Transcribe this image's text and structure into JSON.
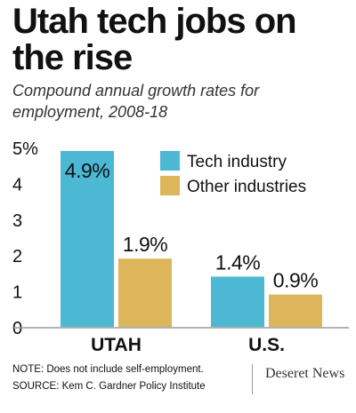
{
  "title": "Utah tech jobs on the rise",
  "subtitle": "Compound annual growth rates for employment, 2008-18",
  "notes": {
    "note": "NOTE: Does not include self-employment.",
    "source": "SOURCE: Kem C. Gardner Policy Institute"
  },
  "brand": "Deseret News",
  "colors": {
    "tech": "#4cb8d4",
    "other": "#ddb55a",
    "axis": "#999999"
  },
  "chart_data": {
    "type": "bar",
    "categories": [
      "UTAH",
      "U.S."
    ],
    "series": [
      {
        "name": "Tech industry",
        "values": [
          4.9,
          1.4
        ],
        "labels": [
          "4.9%",
          "1.4%"
        ]
      },
      {
        "name": "Other industries",
        "values": [
          1.9,
          0.9
        ],
        "labels": [
          "1.9%",
          "0.9%"
        ]
      }
    ],
    "yticks": [
      "0",
      "1",
      "2",
      "3",
      "4",
      "5%"
    ],
    "ylim": [
      0,
      5
    ],
    "xlabel": "",
    "ylabel": "",
    "legend": "top-right",
    "grid": false
  }
}
